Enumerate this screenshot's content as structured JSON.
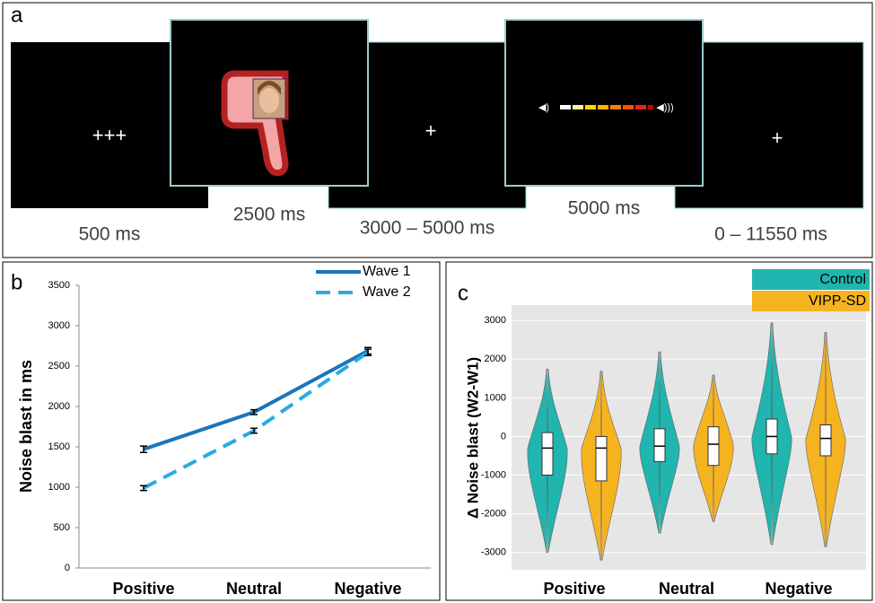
{
  "panel_a": {
    "label": "a",
    "frames": [
      {
        "stimulus": "+++",
        "duration": "500 ms"
      },
      {
        "duration": "2500 ms"
      },
      {
        "stimulus": "+",
        "duration": "3000 – 5000 ms"
      },
      {
        "duration": "5000 ms"
      },
      {
        "stimulus": "+",
        "duration": "0 – 11550  ms"
      }
    ]
  },
  "chart_data": [
    {
      "type": "line",
      "label": "b",
      "y_label": "Noise blast in ms",
      "categories": [
        "Positive",
        "Neutral",
        "Negative"
      ],
      "series": [
        {
          "name": "Wave 1",
          "color": "#1a75bc",
          "dash": false,
          "values": [
            1470,
            1930,
            2690
          ],
          "errors": [
            40,
            30,
            40
          ]
        },
        {
          "name": "Wave 2",
          "color": "#29abe2",
          "dash": true,
          "values": [
            990,
            1700,
            2670
          ],
          "errors": [
            30,
            30,
            40
          ]
        }
      ],
      "ylim": [
        0,
        3500
      ],
      "yticks": [
        0,
        500,
        1000,
        1500,
        2000,
        2500,
        3000,
        3500
      ],
      "legend": "top-right"
    },
    {
      "type": "violin",
      "label": "c",
      "y_label": "Δ Noise blast (W2-W1)",
      "categories": [
        "Positive",
        "Neutral",
        "Negative"
      ],
      "series": [
        {
          "name": "Control",
          "color": "#20b5ae",
          "min": [
            -3000,
            -2500,
            -2800
          ],
          "q1": [
            -1000,
            -650,
            -450
          ],
          "median": [
            -300,
            -250,
            0
          ],
          "q3": [
            100,
            200,
            450
          ],
          "max": [
            1750,
            2200,
            2950
          ]
        },
        {
          "name": "VIPP-SD",
          "color": "#f5b320",
          "min": [
            -3200,
            -2200,
            -2850
          ],
          "q1": [
            -1150,
            -750,
            -500
          ],
          "median": [
            -300,
            -200,
            -50
          ],
          "q3": [
            0,
            250,
            300
          ],
          "max": [
            1700,
            1600,
            2700
          ]
        }
      ],
      "ylim": [
        -3450,
        3400
      ],
      "yticks": [
        -3000,
        -2000,
        -1000,
        0,
        1000,
        2000,
        3000
      ],
      "legend": "top-right",
      "grid": true
    }
  ]
}
